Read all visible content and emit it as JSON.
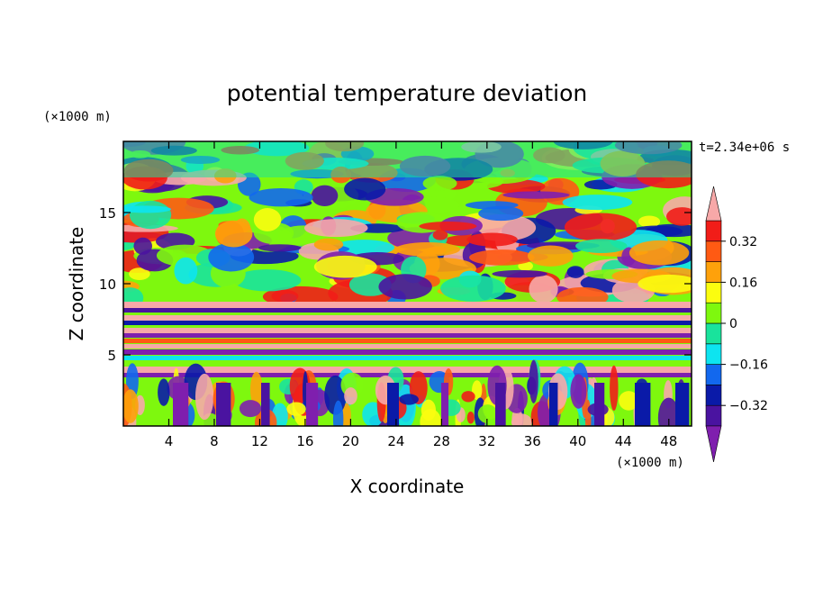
{
  "chart_data": {
    "type": "heatmap",
    "title": "potential temperature deviation",
    "xlabel": "X coordinate",
    "ylabel": "Z coordinate",
    "x_unit": "(×1000 m)",
    "y_unit": "(×1000 m)",
    "time_label": "t=2.34e+06 s",
    "xlim": [
      0,
      50
    ],
    "ylim": [
      0,
      20
    ],
    "x_ticks": [
      4,
      8,
      12,
      16,
      20,
      24,
      28,
      32,
      36,
      40,
      44,
      48
    ],
    "y_ticks": [
      5,
      10,
      15
    ],
    "colorbar": {
      "levels": [
        -0.4,
        -0.32,
        -0.24,
        -0.16,
        -0.08,
        0,
        0.08,
        0.16,
        0.24,
        0.32,
        0.4
      ],
      "labels": [
        "0.32",
        "0.16",
        "0",
        "−0.16",
        "−0.32"
      ],
      "label_values": [
        0.32,
        0.16,
        0,
        -0.16,
        -0.32
      ],
      "colors": [
        "#7f1fae",
        "#4a13a0",
        "#0a1aa8",
        "#1268ee",
        "#0de4f0",
        "#19e39c",
        "#7ef80e",
        "#fbfd0f",
        "#fea10b",
        "#ff5a13",
        "#f11d18",
        "#f7a8a8"
      ],
      "min_extend_color": "#7f1fae",
      "max_extend_color": "#f7a8a8"
    },
    "grid": false
  }
}
